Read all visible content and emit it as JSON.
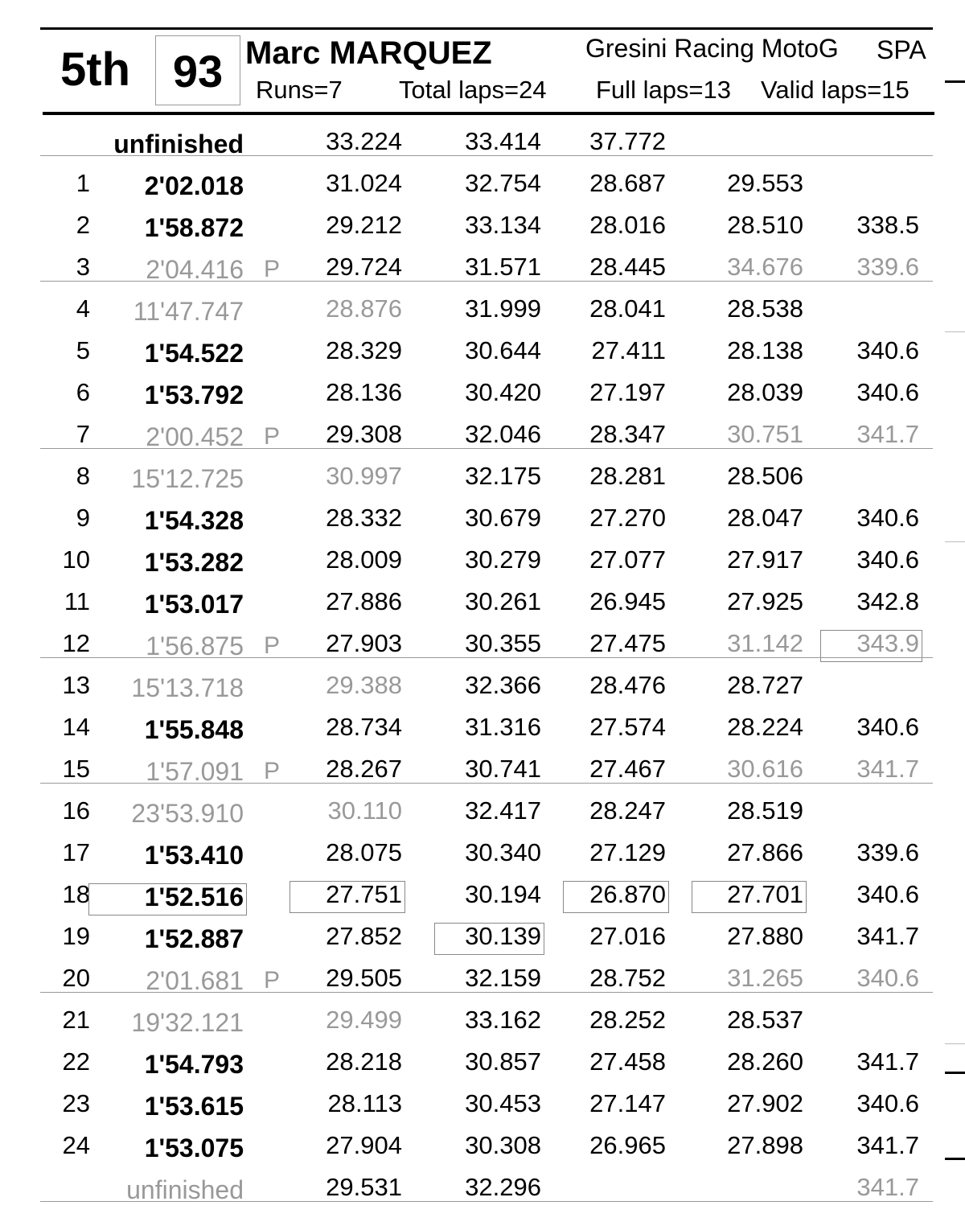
{
  "header": {
    "position": "5th",
    "number": "93",
    "rider": "Marc MARQUEZ",
    "team": "Gresini Racing MotoG",
    "nation": "SPA",
    "runs": "Runs=7",
    "total_laps": "Total laps=24",
    "full_laps": "Full laps=13",
    "valid_laps": "Valid laps=15"
  },
  "colors": {
    "text": "#000000",
    "invalid": "#999999",
    "rule": "#999999"
  },
  "rows": [
    {
      "lap": "",
      "time": "unfinished",
      "pit": "",
      "s1": "33.224",
      "s2": "33.414",
      "s3": "37.772",
      "s4": "",
      "speed": "",
      "bold": true,
      "gray": [],
      "best": []
    },
    {
      "lap": "1",
      "time": "2'02.018",
      "pit": "",
      "s1": "31.024",
      "s2": "32.754",
      "s3": "28.687",
      "s4": "29.553",
      "speed": "",
      "bold": true,
      "gray": [],
      "best": []
    },
    {
      "lap": "2",
      "time": "1'58.872",
      "pit": "",
      "s1": "29.212",
      "s2": "33.134",
      "s3": "28.016",
      "s4": "28.510",
      "speed": "338.5",
      "bold": true,
      "gray": [],
      "best": []
    },
    {
      "lap": "3",
      "time": "2'04.416",
      "pit": "P",
      "s1": "29.724",
      "s2": "31.571",
      "s3": "28.445",
      "s4": "34.676",
      "speed": "339.6",
      "bold": false,
      "gray": [
        "time",
        "s4",
        "speed"
      ],
      "best": [],
      "sep": true
    },
    {
      "lap": "4",
      "time": "11'47.747",
      "pit": "",
      "s1": "28.876",
      "s2": "31.999",
      "s3": "28.041",
      "s4": "28.538",
      "speed": "",
      "bold": false,
      "gray": [
        "time",
        "s1"
      ],
      "best": []
    },
    {
      "lap": "5",
      "time": "1'54.522",
      "pit": "",
      "s1": "28.329",
      "s2": "30.644",
      "s3": "27.411",
      "s4": "28.138",
      "speed": "340.6",
      "bold": true,
      "gray": [],
      "best": []
    },
    {
      "lap": "6",
      "time": "1'53.792",
      "pit": "",
      "s1": "28.136",
      "s2": "30.420",
      "s3": "27.197",
      "s4": "28.039",
      "speed": "340.6",
      "bold": true,
      "gray": [],
      "best": []
    },
    {
      "lap": "7",
      "time": "2'00.452",
      "pit": "P",
      "s1": "29.308",
      "s2": "32.046",
      "s3": "28.347",
      "s4": "30.751",
      "speed": "341.7",
      "bold": false,
      "gray": [
        "time",
        "s4",
        "speed"
      ],
      "best": [],
      "sep": true
    },
    {
      "lap": "8",
      "time": "15'12.725",
      "pit": "",
      "s1": "30.997",
      "s2": "32.175",
      "s3": "28.281",
      "s4": "28.506",
      "speed": "",
      "bold": false,
      "gray": [
        "time",
        "s1"
      ],
      "best": []
    },
    {
      "lap": "9",
      "time": "1'54.328",
      "pit": "",
      "s1": "28.332",
      "s2": "30.679",
      "s3": "27.270",
      "s4": "28.047",
      "speed": "340.6",
      "bold": true,
      "gray": [],
      "best": []
    },
    {
      "lap": "10",
      "time": "1'53.282",
      "pit": "",
      "s1": "28.009",
      "s2": "30.279",
      "s3": "27.077",
      "s4": "27.917",
      "speed": "340.6",
      "bold": true,
      "gray": [],
      "best": []
    },
    {
      "lap": "11",
      "time": "1'53.017",
      "pit": "",
      "s1": "27.886",
      "s2": "30.261",
      "s3": "26.945",
      "s4": "27.925",
      "speed": "342.8",
      "bold": true,
      "gray": [],
      "best": []
    },
    {
      "lap": "12",
      "time": "1'56.875",
      "pit": "P",
      "s1": "27.903",
      "s2": "30.355",
      "s3": "27.475",
      "s4": "31.142",
      "speed": "343.9",
      "bold": false,
      "gray": [
        "time",
        "s4",
        "speed"
      ],
      "best": [
        "speed"
      ],
      "sep": true
    },
    {
      "lap": "13",
      "time": "15'13.718",
      "pit": "",
      "s1": "29.388",
      "s2": "32.366",
      "s3": "28.476",
      "s4": "28.727",
      "speed": "",
      "bold": false,
      "gray": [
        "time",
        "s1"
      ],
      "best": []
    },
    {
      "lap": "14",
      "time": "1'55.848",
      "pit": "",
      "s1": "28.734",
      "s2": "31.316",
      "s3": "27.574",
      "s4": "28.224",
      "speed": "340.6",
      "bold": true,
      "gray": [],
      "best": []
    },
    {
      "lap": "15",
      "time": "1'57.091",
      "pit": "P",
      "s1": "28.267",
      "s2": "30.741",
      "s3": "27.467",
      "s4": "30.616",
      "speed": "341.7",
      "bold": false,
      "gray": [
        "time",
        "s4",
        "speed"
      ],
      "best": [],
      "sep": true
    },
    {
      "lap": "16",
      "time": "23'53.910",
      "pit": "",
      "s1": "30.110",
      "s2": "32.417",
      "s3": "28.247",
      "s4": "28.519",
      "speed": "",
      "bold": false,
      "gray": [
        "time",
        "s1"
      ],
      "best": []
    },
    {
      "lap": "17",
      "time": "1'53.410",
      "pit": "",
      "s1": "28.075",
      "s2": "30.340",
      "s3": "27.129",
      "s4": "27.866",
      "speed": "339.6",
      "bold": true,
      "gray": [],
      "best": []
    },
    {
      "lap": "18",
      "time": "1'52.516",
      "pit": "",
      "s1": "27.751",
      "s2": "30.194",
      "s3": "26.870",
      "s4": "27.701",
      "speed": "340.6",
      "bold": true,
      "gray": [],
      "best": [
        "time",
        "s1",
        "s3",
        "s4"
      ]
    },
    {
      "lap": "19",
      "time": "1'52.887",
      "pit": "",
      "s1": "27.852",
      "s2": "30.139",
      "s3": "27.016",
      "s4": "27.880",
      "speed": "341.7",
      "bold": true,
      "gray": [],
      "best": [
        "s2"
      ]
    },
    {
      "lap": "20",
      "time": "2'01.681",
      "pit": "P",
      "s1": "29.505",
      "s2": "32.159",
      "s3": "28.752",
      "s4": "31.265",
      "speed": "340.6",
      "bold": false,
      "gray": [
        "time",
        "s4",
        "speed"
      ],
      "best": [],
      "sep": true
    },
    {
      "lap": "21",
      "time": "19'32.121",
      "pit": "",
      "s1": "29.499",
      "s2": "33.162",
      "s3": "28.252",
      "s4": "28.537",
      "speed": "",
      "bold": false,
      "gray": [
        "time",
        "s1"
      ],
      "best": []
    },
    {
      "lap": "22",
      "time": "1'54.793",
      "pit": "",
      "s1": "28.218",
      "s2": "30.857",
      "s3": "27.458",
      "s4": "28.260",
      "speed": "341.7",
      "bold": true,
      "gray": [],
      "best": []
    },
    {
      "lap": "23",
      "time": "1'53.615",
      "pit": "",
      "s1": "28.113",
      "s2": "30.453",
      "s3": "27.147",
      "s4": "27.902",
      "speed": "340.6",
      "bold": true,
      "gray": [],
      "best": []
    },
    {
      "lap": "24",
      "time": "1'53.075",
      "pit": "",
      "s1": "27.904",
      "s2": "30.308",
      "s3": "26.965",
      "s4": "27.898",
      "speed": "341.7",
      "bold": true,
      "gray": [],
      "best": []
    },
    {
      "lap": "",
      "time": "unfinished",
      "pit": "",
      "s1": "29.531",
      "s2": "32.296",
      "s3": "",
      "s4": "",
      "speed": "341.7",
      "bold": false,
      "gray": [
        "time",
        "speed"
      ],
      "best": [],
      "sep": true
    }
  ]
}
